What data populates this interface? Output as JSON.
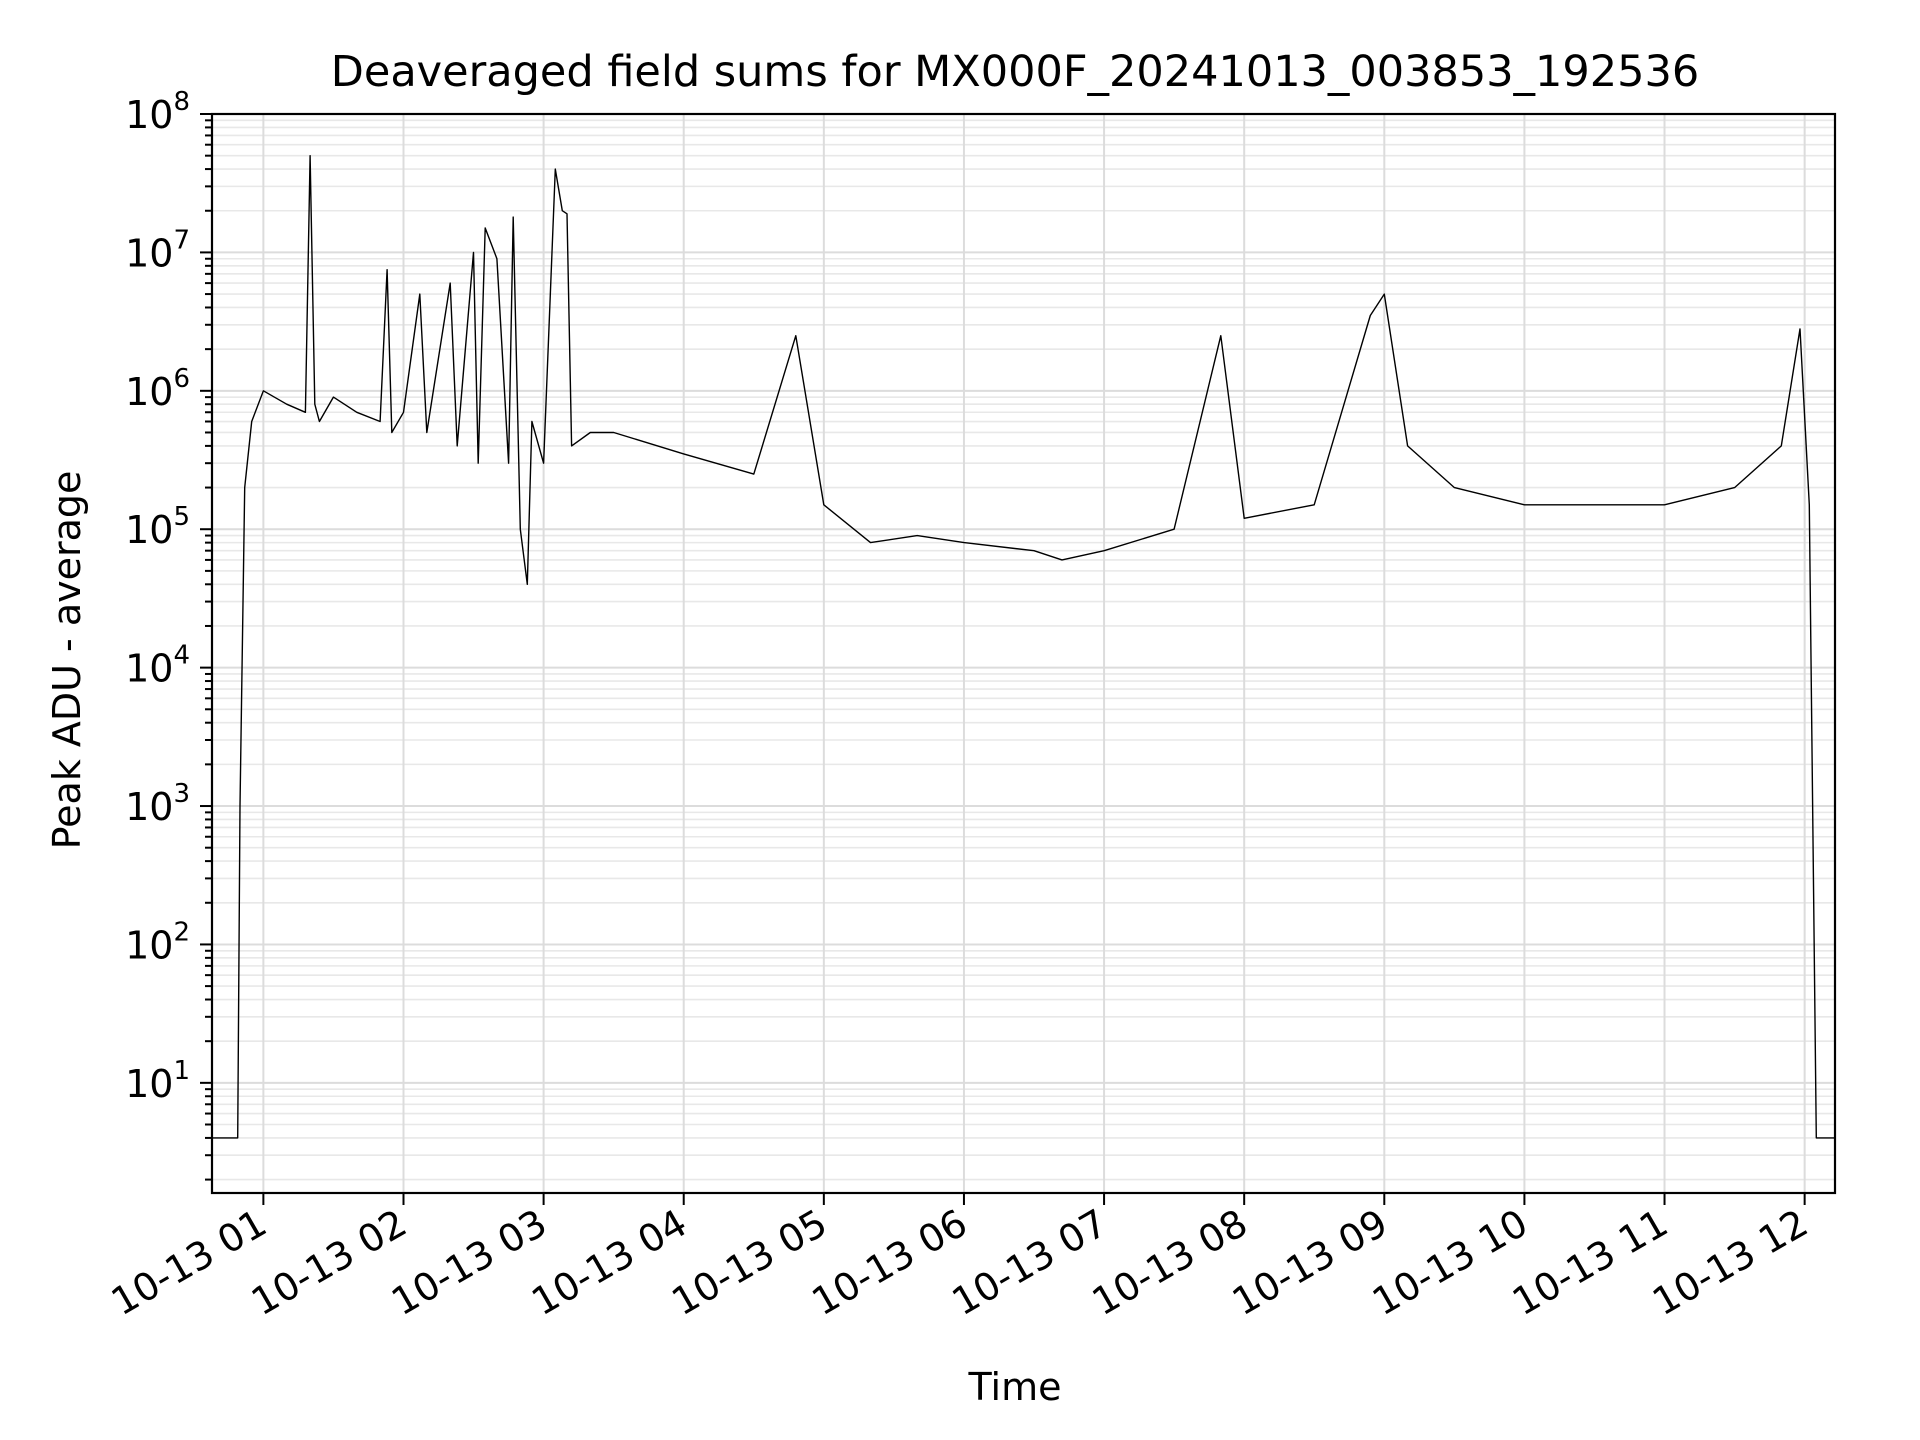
{
  "chart_data": {
    "type": "line",
    "title": "Deaveraged field sums for MX000F_20241013_003853_192536",
    "xlabel": "Time",
    "ylabel": "Peak ADU - average",
    "yscale": "log",
    "ylim": [
      1.6,
      100000000
    ],
    "xlim": [
      "10-13 00:38",
      "10-13 12:13"
    ],
    "grid": true,
    "x_ticks": [
      "10-13 01",
      "10-13 02",
      "10-13 03",
      "10-13 04",
      "10-13 05",
      "10-13 06",
      "10-13 07",
      "10-13 08",
      "10-13 09",
      "10-13 10",
      "10-13 11",
      "10-13 12"
    ],
    "y_ticks": [
      {
        "value": 10,
        "base": "10",
        "exp": "1"
      },
      {
        "value": 100,
        "base": "10",
        "exp": "2"
      },
      {
        "value": 1000,
        "base": "10",
        "exp": "3"
      },
      {
        "value": 10000,
        "base": "10",
        "exp": "4"
      },
      {
        "value": 100000,
        "base": "10",
        "exp": "5"
      },
      {
        "value": 1000000,
        "base": "10",
        "exp": "6"
      },
      {
        "value": 10000000,
        "base": "10",
        "exp": "7"
      },
      {
        "value": 100000000,
        "base": "10",
        "exp": "8"
      }
    ],
    "series": [
      {
        "color": "#000000",
        "x": [
          "10-13 00:38",
          "10-13 00:49",
          "10-13 00:50",
          "10-13 00:52",
          "10-13 00:55",
          "10-13 01:00",
          "10-13 01:10",
          "10-13 01:18",
          "10-13 01:20",
          "10-13 01:22",
          "10-13 01:24",
          "10-13 01:30",
          "10-13 01:40",
          "10-13 01:50",
          "10-13 01:53",
          "10-13 01:55",
          "10-13 02:00",
          "10-13 02:07",
          "10-13 02:10",
          "10-13 02:20",
          "10-13 02:23",
          "10-13 02:30",
          "10-13 02:32",
          "10-13 02:35",
          "10-13 02:40",
          "10-13 02:45",
          "10-13 02:47",
          "10-13 02:50",
          "10-13 02:53",
          "10-13 02:55",
          "10-13 03:00",
          "10-13 03:05",
          "10-13 03:08",
          "10-13 03:10",
          "10-13 03:12",
          "10-13 03:20",
          "10-13 03:30",
          "10-13 04:00",
          "10-13 04:30",
          "10-13 04:48",
          "10-13 05:00",
          "10-13 05:20",
          "10-13 05:40",
          "10-13 06:00",
          "10-13 06:30",
          "10-13 06:42",
          "10-13 07:00",
          "10-13 07:30",
          "10-13 07:50",
          "10-13 08:00",
          "10-13 08:30",
          "10-13 08:54",
          "10-13 09:00",
          "10-13 09:10",
          "10-13 09:30",
          "10-13 10:00",
          "10-13 10:30",
          "10-13 11:00",
          "10-13 11:30",
          "10-13 11:50",
          "10-13 11:58",
          "10-13 12:02",
          "10-13 12:05",
          "10-13 12:13"
        ],
        "y": [
          4,
          4,
          1000,
          200000,
          600000,
          1000000,
          800000,
          700000,
          50000000,
          800000,
          600000,
          900000,
          700000,
          600000,
          7500000,
          500000,
          700000,
          5000000,
          500000,
          6000000,
          400000,
          10000000,
          300000,
          15000000,
          9000000,
          300000,
          18000000,
          100000,
          40000,
          600000,
          300000,
          40000000,
          20000000,
          19000000,
          400000,
          500000,
          500000,
          350000,
          250000,
          2500000,
          150000,
          80000,
          90000,
          80000,
          70000,
          60000,
          70000,
          100000,
          2500000,
          120000,
          150000,
          3500000,
          5000000,
          400000,
          200000,
          150000,
          150000,
          150000,
          200000,
          400000,
          2800000,
          150000,
          4,
          4
        ]
      }
    ]
  }
}
